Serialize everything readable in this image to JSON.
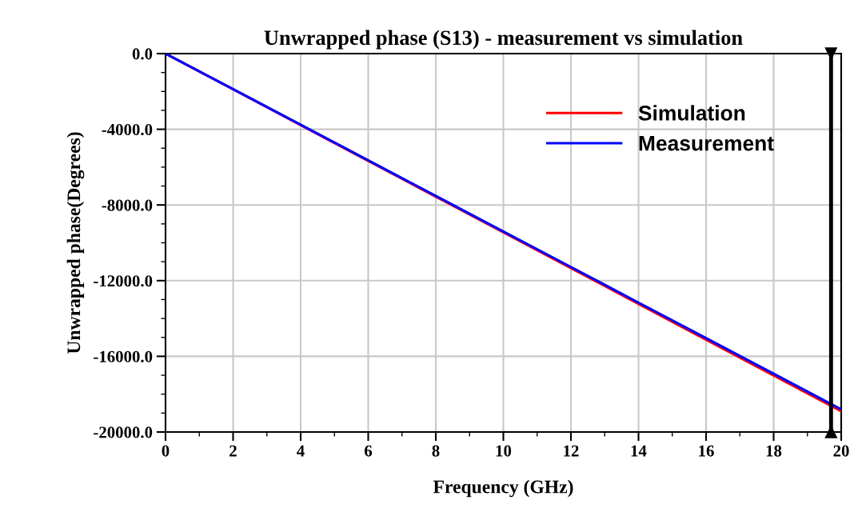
{
  "chart_data": {
    "type": "line",
    "title": "Unwrapped phase (S13) - measurement vs simulation",
    "xlabel": "Frequency (GHz)",
    "ylabel": "Unwrapped phase(Degrees)",
    "x": [
      0,
      2,
      4,
      6,
      8,
      10,
      12,
      14,
      16,
      18,
      20
    ],
    "series": [
      {
        "name": "Simulation",
        "color": "#ff0000",
        "values": [
          0,
          -1890,
          -3780,
          -5670,
          -7560,
          -9450,
          -11340,
          -13230,
          -15120,
          -17010,
          -18900
        ]
      },
      {
        "name": "Measurement",
        "color": "#0000ff",
        "values": [
          0,
          -1880,
          -3760,
          -5640,
          -7520,
          -9400,
          -11280,
          -13160,
          -15040,
          -16920,
          -18800
        ]
      }
    ],
    "xlim": [
      0,
      20
    ],
    "xticks": [
      0,
      2,
      4,
      6,
      8,
      10,
      12,
      14,
      16,
      18,
      20
    ],
    "ylim": [
      -20000,
      0
    ],
    "yticks": [
      {
        "value": 0,
        "label": "0.0"
      },
      {
        "value": -4000,
        "label": "-4000.0"
      },
      {
        "value": -8000,
        "label": "-8000.0"
      },
      {
        "value": -12000,
        "label": "-12000.0"
      },
      {
        "value": -16000,
        "label": "-16000.0"
      },
      {
        "value": -20000,
        "label": "-20000.0"
      }
    ],
    "ref_lines": [
      {
        "axis": "x",
        "value": 19.7,
        "label": null,
        "color": "#000000"
      }
    ],
    "grid": true,
    "legend": "top right",
    "marker": "none",
    "line_style": "solid"
  }
}
